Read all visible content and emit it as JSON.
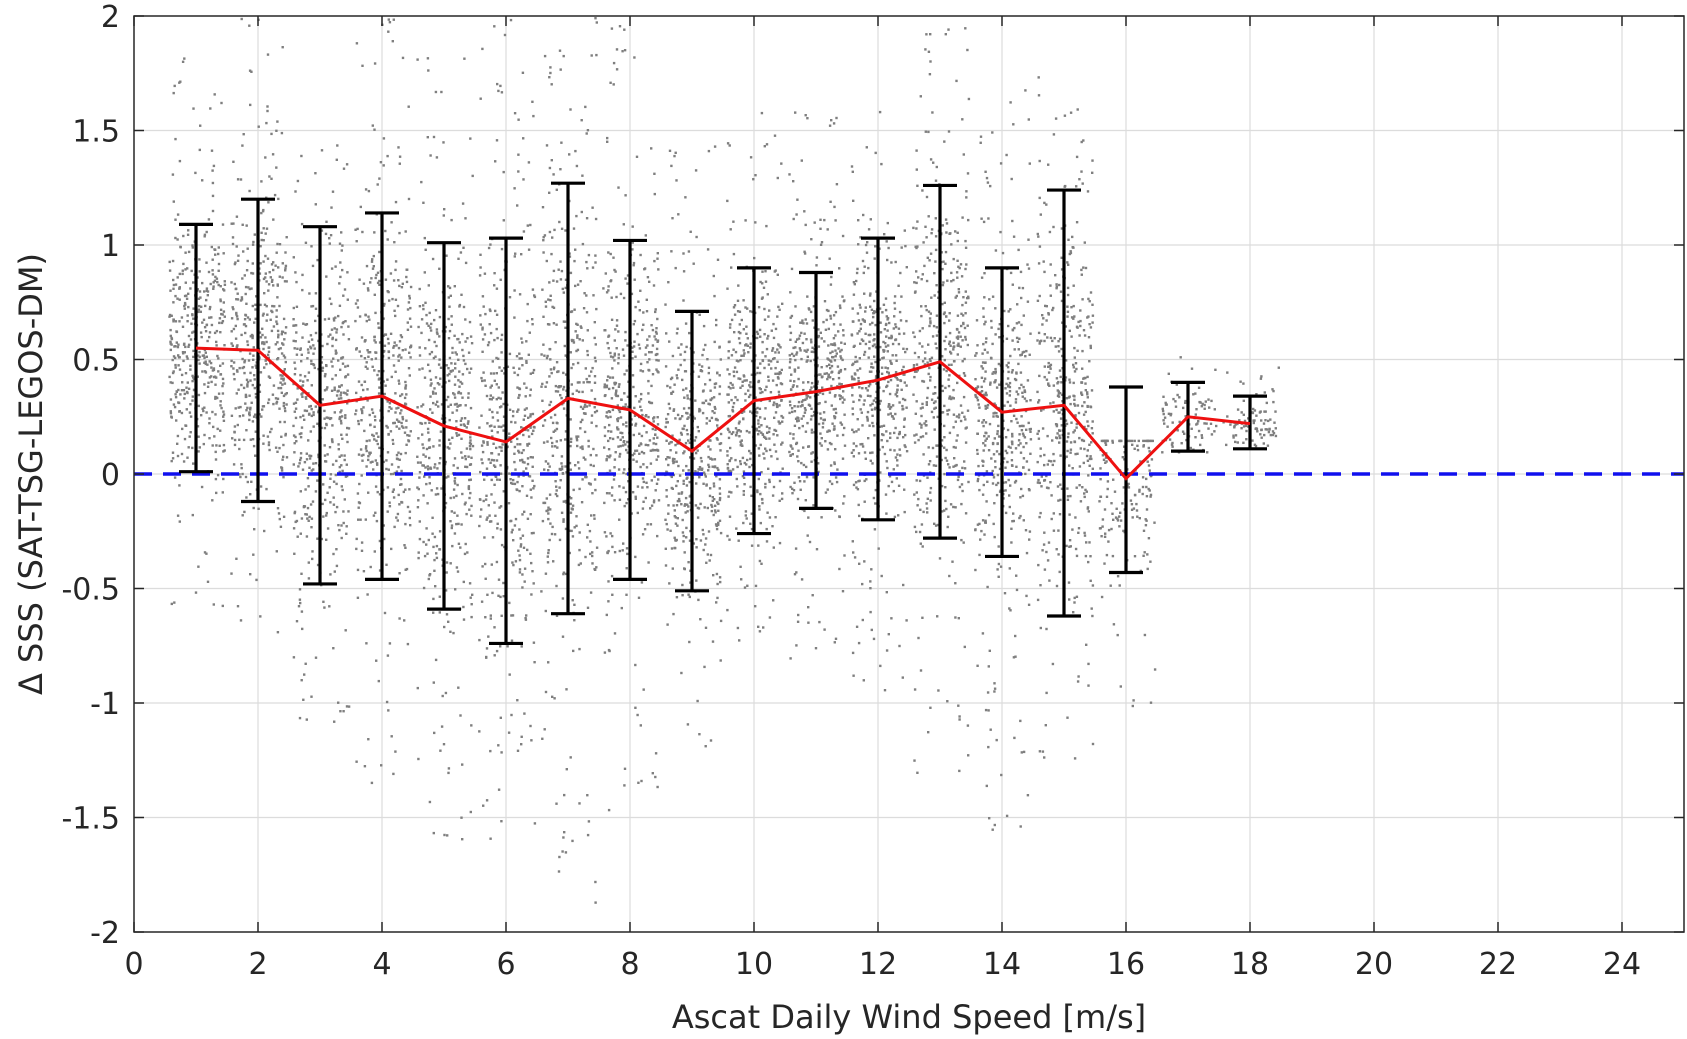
{
  "chart_data": {
    "type": "scatter",
    "title": "",
    "xlabel": "Ascat Daily Wind Speed [m/s]",
    "ylabel": "Δ SSS (SAT-TSG-LEGOS-DM)",
    "xlim": [
      0,
      25
    ],
    "ylim": [
      -2,
      2
    ],
    "xticks": [
      0,
      2,
      4,
      6,
      8,
      10,
      12,
      14,
      16,
      18,
      20,
      22,
      24
    ],
    "yticks": [
      -2,
      -1.5,
      -1,
      -0.5,
      0,
      0.5,
      1,
      1.5,
      2
    ],
    "xtick_labels": [
      "0",
      "2",
      "4",
      "6",
      "8",
      "10",
      "12",
      "14",
      "16",
      "18",
      "20",
      "22",
      "24"
    ],
    "ytick_labels": [
      "-2",
      "-1.5",
      "-1",
      "-0.5",
      "0",
      "0.5",
      "1",
      "1.5",
      "2"
    ],
    "grid": true,
    "reference_line": {
      "y": 0,
      "style": "dashed",
      "color": "#1010ee"
    },
    "scatter_cloud": {
      "description_units": "per-bin spread of individual match-ups (wind speed bin centre, min, max)",
      "color": "#7f7f7f",
      "bins": [
        {
          "x": 1,
          "ymin": -0.6,
          "ymax": 1.85
        },
        {
          "x": 2,
          "ymin": -0.7,
          "ymax": 2.0
        },
        {
          "x": 3,
          "ymin": -1.1,
          "ymax": 1.5
        },
        {
          "x": 4,
          "ymin": -1.35,
          "ymax": 2.0
        },
        {
          "x": 5,
          "ymin": -1.6,
          "ymax": 1.9
        },
        {
          "x": 6,
          "ymin": -1.6,
          "ymax": 2.0
        },
        {
          "x": 7,
          "ymin": -1.95,
          "ymax": 2.0
        },
        {
          "x": 8,
          "ymin": -1.5,
          "ymax": 2.0
        },
        {
          "x": 9,
          "ymin": -1.2,
          "ymax": 1.5
        },
        {
          "x": 10,
          "ymin": -0.75,
          "ymax": 1.6
        },
        {
          "x": 11,
          "ymin": -0.8,
          "ymax": 1.6
        },
        {
          "x": 12,
          "ymin": -1.0,
          "ymax": 1.6
        },
        {
          "x": 13,
          "ymin": -1.3,
          "ymax": 2.0
        },
        {
          "x": 14,
          "ymin": -1.55,
          "ymax": 1.7
        },
        {
          "x": 15,
          "ymin": -1.25,
          "ymax": 1.85
        },
        {
          "x": 16,
          "ymin": -1.05,
          "ymax": 0.15
        },
        {
          "x": 17,
          "ymin": 0.1,
          "ymax": 0.55
        },
        {
          "x": 18,
          "ymin": 0.1,
          "ymax": 0.5
        }
      ]
    },
    "series": [
      {
        "color": "#ee1010",
        "x": [
          1,
          2,
          3,
          4,
          5,
          6,
          7,
          8,
          9,
          10,
          11,
          12,
          13,
          14,
          15,
          16,
          17,
          18
        ],
        "y": [
          0.55,
          0.54,
          0.3,
          0.34,
          0.21,
          0.14,
          0.33,
          0.28,
          0.1,
          0.32,
          0.36,
          0.41,
          0.49,
          0.27,
          0.3,
          -0.02,
          0.25,
          0.22
        ],
        "lower": [
          0.01,
          -0.12,
          -0.48,
          -0.46,
          -0.59,
          -0.74,
          -0.61,
          -0.46,
          -0.51,
          -0.26,
          -0.15,
          -0.2,
          -0.28,
          -0.36,
          -0.62,
          -0.43,
          0.1,
          0.11
        ],
        "upper": [
          1.09,
          1.2,
          1.08,
          1.14,
          1.01,
          1.03,
          1.27,
          1.02,
          0.71,
          0.9,
          0.88,
          1.03,
          1.26,
          0.9,
          1.24,
          0.38,
          0.4,
          0.34
        ]
      }
    ]
  }
}
